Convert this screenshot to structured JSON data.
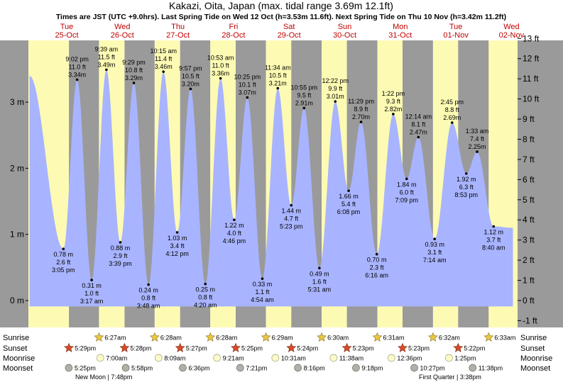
{
  "colors": {
    "day": "#fdfbb3",
    "night": "#9a9a9a",
    "tide": "#a8b4ff",
    "axis_right": "#9a9a9a",
    "day_label": "#c00000",
    "sun": "#e8c840",
    "sunset": "#d84a2a",
    "moonrise": "#fdfcc8",
    "moonset": "#b0b0a8"
  },
  "chart_data": {
    "type": "area",
    "title": "Kakazi, Oita, Japan (max. tidal range 3.69m 12.1ft)",
    "subtitle": "Times are JST (UTC +9.0hrs). Last Spring Tide on Wed 12 Oct (h=3.53m 11.6ft). Next Spring Tide on Thu 10 Nov (h=3.42m 11.2ft)",
    "ylim_m": [
      -0.3,
      3.95
    ],
    "ylim_ft": [
      -1.0,
      13.0
    ],
    "y_ticks_m": [
      "0 m",
      "1 m",
      "2 m",
      "3 m"
    ],
    "y_ticks_ft": [
      "-1 ft",
      "0 ft",
      "1 ft",
      "2 ft",
      "3 ft",
      "4 ft",
      "5 ft",
      "6 ft",
      "7 ft",
      "8 ft",
      "9 ft",
      "10 ft",
      "11 ft",
      "12 ft",
      "13 ft"
    ],
    "days": [
      {
        "dow": "Tue",
        "date": "25-Oct"
      },
      {
        "dow": "Wed",
        "date": "26-Oct"
      },
      {
        "dow": "Thu",
        "date": "27-Oct"
      },
      {
        "dow": "Fri",
        "date": "28-Oct"
      },
      {
        "dow": "Sat",
        "date": "29-Oct"
      },
      {
        "dow": "Sun",
        "date": "30-Oct"
      },
      {
        "dow": "Mon",
        "date": "31-Oct"
      },
      {
        "dow": "Tue",
        "date": "01-Nov"
      },
      {
        "dow": "Wed",
        "date": "02-Nov"
      }
    ],
    "start": "25-Oct 00:00",
    "hours_shown": 211,
    "curve_start": {
      "hour": 0.5,
      "m": 3.4
    },
    "curve_end": {
      "hour": 209.0,
      "m": 1.1
    },
    "tides": [
      {
        "hour": 15.08,
        "m": 0.78,
        "ft": "2.6 ft",
        "time": "3:05 pm",
        "type": "low"
      },
      {
        "hour": 21.03,
        "m": 3.34,
        "ft": "11.0 ft",
        "time": "9:02 pm",
        "type": "high"
      },
      {
        "hour": 27.28,
        "m": 0.31,
        "ft": "1.0 ft",
        "time": "3:17 am",
        "type": "low"
      },
      {
        "hour": 33.65,
        "m": 3.49,
        "ft": "11.5 ft",
        "time": "9:39 am",
        "type": "high"
      },
      {
        "hour": 39.65,
        "m": 0.88,
        "ft": "2.9 ft",
        "time": "3:39 pm",
        "type": "low"
      },
      {
        "hour": 45.48,
        "m": 3.29,
        "ft": "10.8 ft",
        "time": "9:29 pm",
        "type": "high"
      },
      {
        "hour": 51.8,
        "m": 0.24,
        "ft": "0.8 ft",
        "time": "3:48 am",
        "type": "low"
      },
      {
        "hour": 58.25,
        "m": 3.46,
        "ft": "11.4 ft",
        "time": "10:15 am",
        "type": "high"
      },
      {
        "hour": 64.2,
        "m": 1.03,
        "ft": "3.4 ft",
        "time": "4:12 pm",
        "type": "low"
      },
      {
        "hour": 69.95,
        "m": 3.2,
        "ft": "10.5 ft",
        "time": "9:57 pm",
        "type": "high"
      },
      {
        "hour": 76.33,
        "m": 0.25,
        "ft": "0.8 ft",
        "time": "4:20 am",
        "type": "low"
      },
      {
        "hour": 82.88,
        "m": 3.36,
        "ft": "11.0 ft",
        "time": "10:53 am",
        "type": "high"
      },
      {
        "hour": 88.77,
        "m": 1.22,
        "ft": "4.0 ft",
        "time": "4:46 pm",
        "type": "low"
      },
      {
        "hour": 94.42,
        "m": 3.07,
        "ft": "10.1 ft",
        "time": "10:25 pm",
        "type": "high"
      },
      {
        "hour": 100.9,
        "m": 0.33,
        "ft": "1.1 ft",
        "time": "4:54 am",
        "type": "low"
      },
      {
        "hour": 107.57,
        "m": 3.21,
        "ft": "10.5 ft",
        "time": "11:34 am",
        "type": "high"
      },
      {
        "hour": 113.38,
        "m": 1.44,
        "ft": "4.7 ft",
        "time": "5:23 pm",
        "type": "low"
      },
      {
        "hour": 118.92,
        "m": 2.91,
        "ft": "9.5 ft",
        "time": "10:55 pm",
        "type": "high"
      },
      {
        "hour": 125.52,
        "m": 0.49,
        "ft": "1.6 ft",
        "time": "5:31 am",
        "type": "low"
      },
      {
        "hour": 132.37,
        "m": 3.01,
        "ft": "9.9 ft",
        "time": "12:22 pm",
        "type": "high"
      },
      {
        "hour": 138.13,
        "m": 1.66,
        "ft": "5.4 ft",
        "time": "6:08 pm",
        "type": "low"
      },
      {
        "hour": 143.48,
        "m": 2.7,
        "ft": "8.9 ft",
        "time": "11:29 pm",
        "type": "high"
      },
      {
        "hour": 150.27,
        "m": 0.7,
        "ft": "2.3 ft",
        "time": "6:16 am",
        "type": "low"
      },
      {
        "hour": 157.37,
        "m": 2.82,
        "ft": "9.3 ft",
        "time": "1:22 pm",
        "type": "high"
      },
      {
        "hour": 163.15,
        "m": 1.84,
        "ft": "6.0 ft",
        "time": "7:09 pm",
        "type": "low"
      },
      {
        "hour": 168.23,
        "m": 2.47,
        "ft": "8.1 ft",
        "time": "12:14 am",
        "type": "high"
      },
      {
        "hour": 175.23,
        "m": 0.93,
        "ft": "3.1 ft",
        "time": "7:14 am",
        "type": "low"
      },
      {
        "hour": 182.75,
        "m": 2.69,
        "ft": "8.8 ft",
        "time": "2:45 pm",
        "type": "high"
      },
      {
        "hour": 188.88,
        "m": 1.92,
        "ft": "6.3 ft",
        "time": "8:53 pm",
        "type": "low"
      },
      {
        "hour": 193.55,
        "m": 2.25,
        "ft": "7.4 ft",
        "time": "1:33 am",
        "type": "high"
      },
      {
        "hour": 200.67,
        "m": 1.12,
        "ft": "3.7 ft",
        "time": "8:40 am",
        "type": "low"
      }
    ],
    "sunrise": [
      {
        "hour": 30.45,
        "time": "6:27am"
      },
      {
        "hour": 54.47,
        "time": "6:28am"
      },
      {
        "hour": 78.47,
        "time": "6:28am"
      },
      {
        "hour": 102.48,
        "time": "6:29am"
      },
      {
        "hour": 126.5,
        "time": "6:30am"
      },
      {
        "hour": 150.52,
        "time": "6:31am"
      },
      {
        "hour": 174.53,
        "time": "6:32am"
      },
      {
        "hour": 198.55,
        "time": "6:33am"
      }
    ],
    "sunset": [
      {
        "hour": 17.48,
        "time": "5:29pm"
      },
      {
        "hour": 41.47,
        "time": "5:28pm"
      },
      {
        "hour": 65.45,
        "time": "5:27pm"
      },
      {
        "hour": 89.42,
        "time": "5:25pm"
      },
      {
        "hour": 113.4,
        "time": "5:24pm"
      },
      {
        "hour": 137.38,
        "time": "5:23pm"
      },
      {
        "hour": 161.38,
        "time": "5:23pm"
      },
      {
        "hour": 185.37,
        "time": "5:22pm"
      }
    ],
    "moonrise": [
      {
        "hour": 31.0,
        "time": "7:00am"
      },
      {
        "hour": 56.15,
        "time": "8:09am"
      },
      {
        "hour": 81.35,
        "time": "9:21am"
      },
      {
        "hour": 106.52,
        "time": "10:31am"
      },
      {
        "hour": 131.63,
        "time": "11:38am"
      },
      {
        "hour": 156.6,
        "time": "12:36pm"
      },
      {
        "hour": 181.42,
        "time": "1:25pm"
      }
    ],
    "moonset": [
      {
        "hour": 17.42,
        "time": "5:25pm"
      },
      {
        "hour": 41.97,
        "time": "5:58pm"
      },
      {
        "hour": 66.6,
        "time": "6:36pm"
      },
      {
        "hour": 91.35,
        "time": "7:21pm"
      },
      {
        "hour": 116.27,
        "time": "8:16pm"
      },
      {
        "hour": 141.3,
        "time": "9:18pm"
      },
      {
        "hour": 166.45,
        "time": "10:27pm"
      },
      {
        "hour": 191.63,
        "time": "11:38pm"
      }
    ],
    "row_labels": {
      "sunrise": "Sunrise",
      "sunset": "Sunset",
      "moonrise": "Moonrise",
      "moonset": "Moonset"
    },
    "moon_phases": [
      {
        "text": "New Moon | 7:48pm"
      },
      {
        "text": "First Quarter | 3:38pm"
      }
    ]
  }
}
